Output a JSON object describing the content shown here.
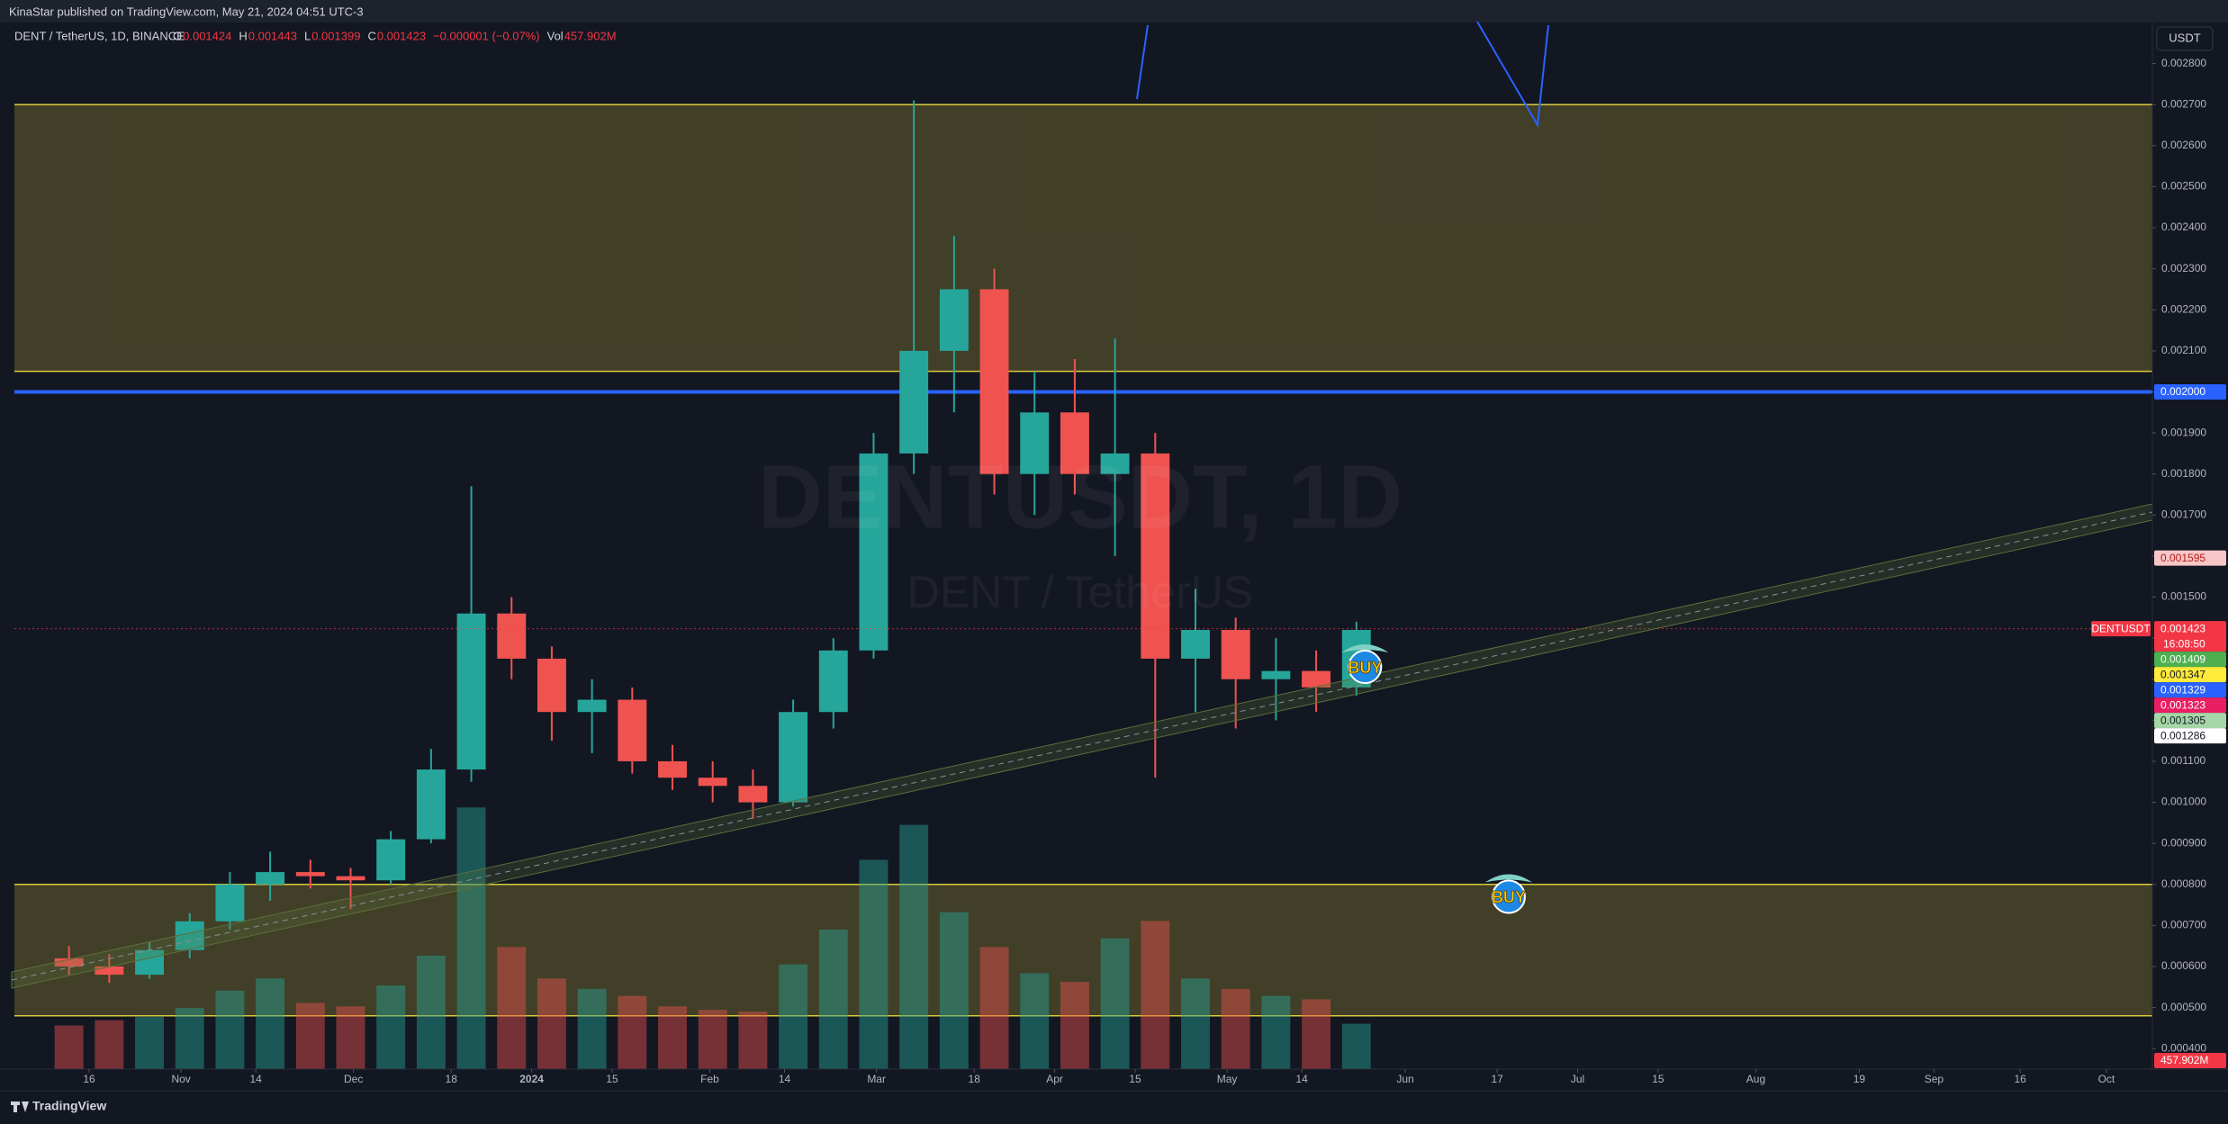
{
  "header": {
    "title": "KinaStar published on TradingView.com, May 21, 2024 04:51 UTC-3"
  },
  "legend": {
    "symbol": "DENT / TetherUS, 1D, BINANCE",
    "ohlc": [
      {
        "key": "O",
        "value": 0.001424
      },
      {
        "key": "H",
        "value": 0.001443
      },
      {
        "key": "L",
        "value": 0.001399
      },
      {
        "key": "C",
        "value": 0.001423
      }
    ],
    "change": "−0.000001 (−0.07%)",
    "vol_key": "Vol",
    "vol": "457.902M"
  },
  "currency_button": "USDT",
  "watermark": {
    "main": "DENTUSDT, 1D",
    "sub": "DENT / TetherUS"
  },
  "footer": {
    "brand": "TradingView"
  },
  "annotations": [
    {
      "text": "BUY",
      "x": "2024-05-25",
      "y": 0.00133
    },
    {
      "text": "BUY",
      "x": "2024-06-19",
      "y": 0.00077
    }
  ],
  "chart_data": {
    "type": "candlestick",
    "x": [
      "2023-10-09",
      "2023-10-16",
      "2023-10-23",
      "2023-10-30",
      "2023-11-06",
      "2023-11-13",
      "2023-11-20",
      "2023-11-27",
      "2023-12-04",
      "2023-12-11",
      "2023-12-18",
      "2023-12-25",
      "2024-01-01",
      "2024-01-08",
      "2024-01-15",
      "2024-01-22",
      "2024-01-29",
      "2024-02-05",
      "2024-02-12",
      "2024-02-19",
      "2024-02-26",
      "2024-03-04",
      "2024-03-11",
      "2024-03-18",
      "2024-03-25",
      "2024-04-01",
      "2024-04-08",
      "2024-04-15",
      "2024-04-22",
      "2024-04-29",
      "2024-05-06",
      "2024-05-13",
      "2024-05-20"
    ],
    "open": [
      0.00062,
      0.0006,
      0.00058,
      0.00064,
      0.00071,
      0.0008,
      0.00083,
      0.00082,
      0.00081,
      0.00091,
      0.00108,
      0.00146,
      0.00135,
      0.00122,
      0.00125,
      0.0011,
      0.00106,
      0.00104,
      0.001,
      0.00122,
      0.00137,
      0.00185,
      0.0021,
      0.00225,
      0.0018,
      0.00195,
      0.0018,
      0.00185,
      0.00135,
      0.00142,
      0.0013,
      0.00132,
      0.00128
    ],
    "high": [
      0.00065,
      0.00063,
      0.00066,
      0.00073,
      0.00083,
      0.00088,
      0.00086,
      0.00084,
      0.00093,
      0.00113,
      0.00177,
      0.0015,
      0.00138,
      0.0013,
      0.00128,
      0.00114,
      0.0011,
      0.00108,
      0.00125,
      0.0014,
      0.0019,
      0.00271,
      0.00238,
      0.0023,
      0.00205,
      0.00208,
      0.00213,
      0.0019,
      0.00152,
      0.00145,
      0.0014,
      0.00137,
      0.00144
    ],
    "low": [
      0.00058,
      0.00056,
      0.00057,
      0.00062,
      0.00069,
      0.00076,
      0.00079,
      0.00074,
      0.0008,
      0.0009,
      0.00105,
      0.0013,
      0.00115,
      0.00112,
      0.00107,
      0.00103,
      0.001,
      0.00096,
      0.00099,
      0.00118,
      0.00135,
      0.0018,
      0.00195,
      0.00175,
      0.0017,
      0.00175,
      0.0016,
      0.00106,
      0.00122,
      0.00118,
      0.0012,
      0.00122,
      0.00126
    ],
    "close": [
      0.0006,
      0.00058,
      0.00064,
      0.00071,
      0.0008,
      0.00083,
      0.00082,
      0.00081,
      0.00091,
      0.00108,
      0.00146,
      0.00135,
      0.00122,
      0.00125,
      0.0011,
      0.00106,
      0.00104,
      0.001,
      0.00122,
      0.00137,
      0.00185,
      0.0021,
      0.00225,
      0.0018,
      0.00195,
      0.0018,
      0.00185,
      0.00135,
      0.00142,
      0.0013,
      0.00132,
      0.00128,
      0.00142
    ],
    "volume": [
      2500,
      2800,
      3000,
      3500,
      4500,
      5200,
      3800,
      3600,
      4800,
      6500,
      15000,
      7000,
      5200,
      4600,
      4200,
      3600,
      3400,
      3300,
      6000,
      8000,
      12000,
      14000,
      9000,
      7000,
      5500,
      5000,
      7500,
      8500,
      5200,
      4600,
      4200,
      4000,
      2600
    ],
    "up_color": "#26a69a",
    "down_color": "#ef5350",
    "xlim": [
      "2023-10-03",
      "2024-10-09"
    ],
    "xticks": [
      {
        "value": "2023-10-16",
        "label": "16"
      },
      {
        "value": "2023-11-01",
        "label": "Nov"
      },
      {
        "value": "2023-11-14",
        "label": "14"
      },
      {
        "value": "2023-12-01",
        "label": "Dec"
      },
      {
        "value": "2023-12-18",
        "label": "18"
      },
      {
        "value": "2024-01-01",
        "label": "2024"
      },
      {
        "value": "2024-01-15",
        "label": "15"
      },
      {
        "value": "2024-02-01",
        "label": "Feb"
      },
      {
        "value": "2024-02-14",
        "label": "14"
      },
      {
        "value": "2024-03-01",
        "label": "Mar"
      },
      {
        "value": "2024-03-18",
        "label": "18"
      },
      {
        "value": "2024-04-01",
        "label": "Apr"
      },
      {
        "value": "2024-04-15",
        "label": "15"
      },
      {
        "value": "2024-05-01",
        "label": "May"
      },
      {
        "value": "2024-05-14",
        "label": "14"
      },
      {
        "value": "2024-06-01",
        "label": "Jun"
      },
      {
        "value": "2024-06-17",
        "label": "17"
      },
      {
        "value": "2024-07-01",
        "label": "Jul"
      },
      {
        "value": "2024-07-15",
        "label": "15"
      },
      {
        "value": "2024-08-01",
        "label": "Aug"
      },
      {
        "value": "2024-08-19",
        "label": "19"
      },
      {
        "value": "2024-09-01",
        "label": "Sep"
      },
      {
        "value": "2024-09-16",
        "label": "16"
      },
      {
        "value": "2024-10-01",
        "label": "Oct"
      }
    ],
    "ylim": [
      0.00035,
      0.0029
    ],
    "yticks": [
      {
        "value": 0.0004,
        "label": "0.000400"
      },
      {
        "value": 0.0005,
        "label": "0.000500"
      },
      {
        "value": 0.0006,
        "label": "0.000600"
      },
      {
        "value": 0.0007,
        "label": "0.000700"
      },
      {
        "value": 0.0008,
        "label": "0.000800"
      },
      {
        "value": 0.0009,
        "label": "0.000900"
      },
      {
        "value": 0.001,
        "label": "0.001000"
      },
      {
        "value": 0.0011,
        "label": "0.001100"
      },
      {
        "value": 0.0012,
        "label": "0.001200"
      },
      {
        "value": 0.0013,
        "label": "0.001300"
      },
      {
        "value": 0.0014,
        "label": "0.001400"
      },
      {
        "value": 0.0015,
        "label": "0.001500"
      },
      {
        "value": 0.0016,
        "label": "0.001600"
      },
      {
        "value": 0.0017,
        "label": "0.001700"
      },
      {
        "value": 0.0018,
        "label": "0.001800"
      },
      {
        "value": 0.0019,
        "label": "0.001900"
      },
      {
        "value": 0.002,
        "label": "0.002000"
      },
      {
        "value": 0.0021,
        "label": "0.002100"
      },
      {
        "value": 0.0022,
        "label": "0.002200"
      },
      {
        "value": 0.0023,
        "label": "0.002300"
      },
      {
        "value": 0.0024,
        "label": "0.002400"
      },
      {
        "value": 0.0025,
        "label": "0.002500"
      },
      {
        "value": 0.0026,
        "label": "0.002600"
      },
      {
        "value": 0.0027,
        "label": "0.002700"
      },
      {
        "value": 0.0028,
        "label": "0.002800"
      }
    ],
    "volume_ylim": [
      0,
      60000
    ],
    "zones": [
      {
        "from": 0.00205,
        "to": 0.0027,
        "color": "#4a4628"
      },
      {
        "from": 0.00048,
        "to": 0.0008,
        "color": "#4a4628"
      }
    ],
    "zone_border": "#d8c93a",
    "hlines": [
      {
        "value": 0.002,
        "color": "#2962ff"
      }
    ],
    "price_badges": [
      {
        "value": 0.002,
        "label": "0.002000",
        "color": "#2962ff",
        "text_color": "#ffffff"
      },
      {
        "value": 0.001595,
        "label": "0.001595",
        "color": "#f7c6c6",
        "text_color": "#b71c1c"
      },
      {
        "value": 0.001423,
        "label": "0.001423",
        "name": "DENTUSDT",
        "countdown": "16:08:50",
        "color": "#f23645",
        "text_color": "#ffffff"
      },
      {
        "value": 0.001409,
        "label": "0.001409",
        "color": "#4caf50",
        "text_color": "#ffffff"
      },
      {
        "value": 0.001347,
        "label": "0.001347",
        "color": "#ffeb3b",
        "text_color": "#131722"
      },
      {
        "value": 0.001329,
        "label": "0.001329",
        "color": "#2962ff",
        "text_color": "#ffffff"
      },
      {
        "value": 0.001323,
        "label": "0.001323",
        "color": "#e91e63",
        "text_color": "#ffffff"
      },
      {
        "value": 0.001305,
        "label": "0.001305",
        "color": "#a5d6a7",
        "text_color": "#131722"
      },
      {
        "value": 0.001286,
        "label": "0.001286",
        "color": "#ffffff",
        "text_color": "#131722"
      }
    ],
    "volume_badge": {
      "label": "457.902M",
      "color": "#f23645",
      "text_color": "#ffffff"
    }
  }
}
